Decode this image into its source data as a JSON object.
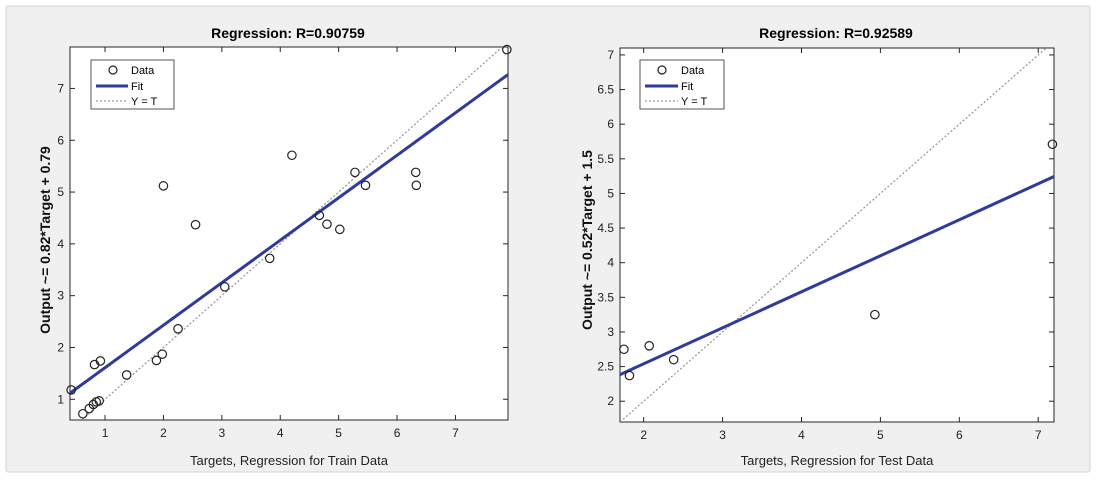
{
  "colors": {
    "background": "#ffffff",
    "figure": "#f0f0f0",
    "fit": "#2e3b9c",
    "ideal": "#9a9a9a",
    "data": "#222222"
  },
  "legend_labels": {
    "data": "Data",
    "fit": "Fit",
    "ideal": "Y = T"
  },
  "chart_data": [
    {
      "type": "scatter",
      "title": "Regression: R=0.90759",
      "xlabel": "Targets, Regression for Train Data",
      "ylabel": "Output ~= 0.82*Target + 0.79",
      "xlim": [
        0.4,
        7.9
      ],
      "ylim": [
        0.6,
        7.8
      ],
      "xticks": [
        1,
        2,
        3,
        4,
        5,
        6,
        7
      ],
      "yticks": [
        1,
        2,
        3,
        4,
        5,
        6,
        7
      ],
      "legend_position": "top-left",
      "grid": false,
      "fit": {
        "slope": 0.82,
        "intercept": 0.79
      },
      "points": [
        [
          0.42,
          1.18
        ],
        [
          0.62,
          0.72
        ],
        [
          0.73,
          0.82
        ],
        [
          0.8,
          0.9
        ],
        [
          0.85,
          0.95
        ],
        [
          0.9,
          0.97
        ],
        [
          0.82,
          1.67
        ],
        [
          0.92,
          1.74
        ],
        [
          1.37,
          1.47
        ],
        [
          1.88,
          1.75
        ],
        [
          1.98,
          1.87
        ],
        [
          2.0,
          5.12
        ],
        [
          2.25,
          2.36
        ],
        [
          2.55,
          4.37
        ],
        [
          3.05,
          3.17
        ],
        [
          3.82,
          3.72
        ],
        [
          4.2,
          5.71
        ],
        [
          4.67,
          4.55
        ],
        [
          4.8,
          4.38
        ],
        [
          5.02,
          4.28
        ],
        [
          5.28,
          5.38
        ],
        [
          5.46,
          5.13
        ],
        [
          6.32,
          5.38
        ],
        [
          6.33,
          5.13
        ],
        [
          7.88,
          7.75
        ]
      ]
    },
    {
      "type": "scatter",
      "title": "Regression: R=0.92589",
      "xlabel": "Targets, Regression for Test Data",
      "ylabel": "Output ~= 0.52*Target + 1.5",
      "xlim": [
        1.7,
        7.2
      ],
      "ylim": [
        1.7,
        7.1
      ],
      "xticks": [
        2,
        3,
        4,
        5,
        6,
        7
      ],
      "yticks": [
        2,
        2.5,
        3,
        3.5,
        4,
        4.5,
        5,
        5.5,
        6,
        6.5,
        7
      ],
      "legend_position": "top-left",
      "grid": false,
      "fit": {
        "slope": 0.52,
        "intercept": 1.5
      },
      "points": [
        [
          1.75,
          2.75
        ],
        [
          1.82,
          2.37
        ],
        [
          2.07,
          2.8
        ],
        [
          2.38,
          2.6
        ],
        [
          4.93,
          3.25
        ],
        [
          7.18,
          5.71
        ]
      ]
    }
  ]
}
